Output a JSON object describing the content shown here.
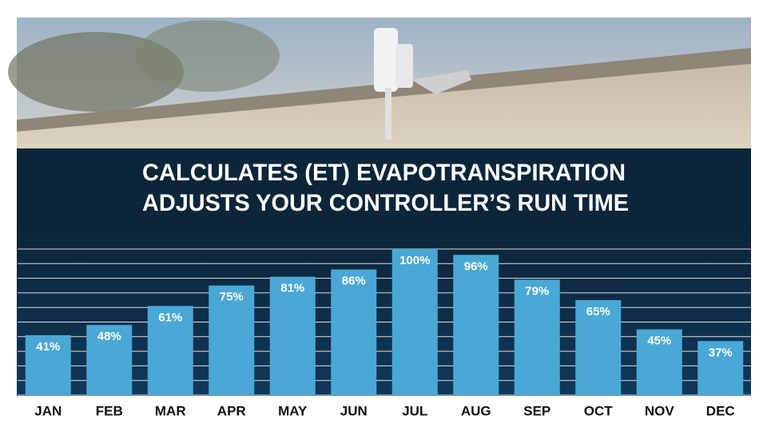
{
  "chart_data": {
    "type": "bar",
    "title_lines": [
      "CALCULATES (ET) EVAPOTRANSPIRATION",
      "ADJUSTS YOUR CONTROLLER’S RUN TIME"
    ],
    "categories": [
      "JAN",
      "FEB",
      "MAR",
      "APR",
      "MAY",
      "JUN",
      "JUL",
      "AUG",
      "SEP",
      "OCT",
      "NOV",
      "DEC"
    ],
    "values": [
      41,
      48,
      61,
      75,
      81,
      86,
      100,
      96,
      79,
      65,
      45,
      37
    ],
    "value_labels": [
      "41%",
      "48%",
      "61%",
      "75%",
      "81%",
      "86%",
      "100%",
      "96%",
      "79%",
      "65%",
      "45%",
      "37%"
    ],
    "color": "#4aa8d6",
    "ylim": [
      0,
      100
    ],
    "yticks": [
      0,
      10,
      20,
      30,
      40,
      50,
      60,
      70,
      80,
      90,
      100
    ],
    "grid": true
  }
}
